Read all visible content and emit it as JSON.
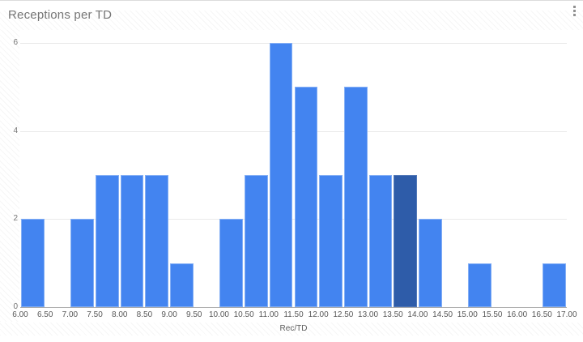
{
  "header": {
    "title": "Receptions per TD",
    "more_options_icon": "kebab-dots-vertical"
  },
  "chart_data": {
    "type": "bar",
    "subtype": "histogram",
    "title": "Receptions per TD",
    "xlabel": "Rec/TD",
    "ylabel": "",
    "xlim": [
      6.0,
      17.0
    ],
    "ylim": [
      0,
      6
    ],
    "bin_width": 0.5,
    "grid": "horizontal",
    "legend_position": "none",
    "x_tick_labels": [
      "6.00",
      "6.50",
      "7.00",
      "7.50",
      "8.00",
      "8.50",
      "9.00",
      "9.50",
      "10.00",
      "10.50",
      "11.00",
      "11.50",
      "12.00",
      "12.50",
      "13.00",
      "13.50",
      "14.00",
      "14.50",
      "15.00",
      "15.50",
      "16.00",
      "16.50",
      "17.00"
    ],
    "y_tick_labels": [
      "0",
      "2",
      "4",
      "6"
    ],
    "y_tick_values": [
      0,
      2,
      4,
      6
    ],
    "bin_starts": [
      6.0,
      6.5,
      7.0,
      7.5,
      8.0,
      8.5,
      9.0,
      9.5,
      10.0,
      10.5,
      11.0,
      11.5,
      12.0,
      12.5,
      13.0,
      13.5,
      14.0,
      14.5,
      15.0,
      15.5,
      16.0,
      16.5
    ],
    "counts": [
      2,
      0,
      2,
      3,
      3,
      3,
      1,
      0,
      2,
      3,
      6,
      5,
      3,
      5,
      3,
      3,
      2,
      0,
      1,
      0,
      0,
      1
    ],
    "highlighted_bin_index": 15,
    "highlighted_bin_range": "13.50–14.00",
    "colors": {
      "bar": "#4384f0",
      "bar_highlight": "#2e5ca9",
      "gridline": "#e9e9e9",
      "axis_line": "#ababab",
      "title_text": "#757575",
      "tick_text": "#585858"
    }
  }
}
